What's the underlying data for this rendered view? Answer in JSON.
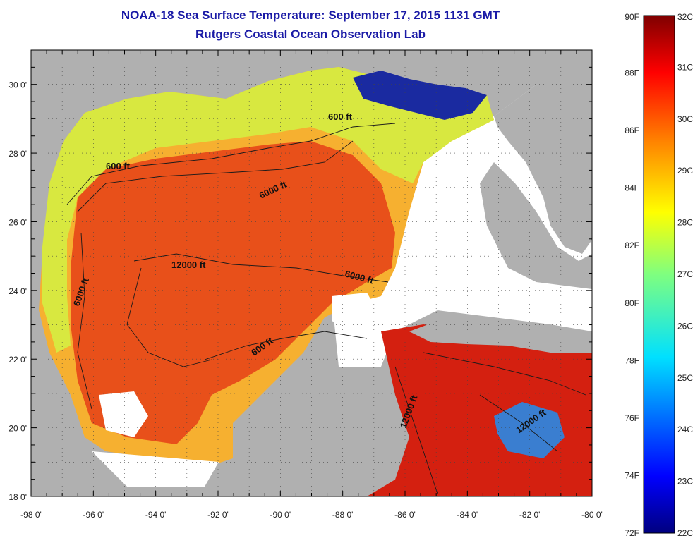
{
  "title": "NOAA-18 Sea Surface Temperature:  September 17, 2015 1131 GMT",
  "subtitle": "Rutgers Coastal Ocean Observation Lab",
  "map": {
    "lon_range": [
      -98,
      -80
    ],
    "lat_range": [
      18,
      31
    ],
    "x_ticks": [
      "-98 0'",
      "-96 0'",
      "-94 0'",
      "-92 0'",
      "-90 0'",
      "-88 0'",
      "-86 0'",
      "-84 0'",
      "-82 0'",
      "-80 0'"
    ],
    "y_ticks": [
      "30 0'",
      "28 0'",
      "26 0'",
      "24 0'",
      "22 0'",
      "20 0'",
      "18 0'"
    ],
    "contour_labels": [
      "600 ft",
      "600 ft",
      "6000 ft",
      "6000 ft",
      "12000 ft",
      "6000 ft",
      "600 ft",
      "12000 ft",
      "12000 ft"
    ],
    "colors": {
      "land": "#b0b0b0",
      "no_data": "#ffffff",
      "warm": "#e8501a",
      "hot": "#d42010",
      "mid": "#f6b030",
      "cool": "#d8e840",
      "cold": "#1a2aa0"
    }
  },
  "colorbar": {
    "fahrenheit_labels": [
      "90F",
      "88F",
      "86F",
      "84F",
      "82F",
      "80F",
      "78F",
      "76F",
      "74F",
      "72F"
    ],
    "celsius_labels": [
      "32C",
      "31C",
      "30C",
      "29C",
      "28C",
      "27C",
      "26C",
      "25C",
      "24C",
      "23C",
      "22C"
    ],
    "range_c": [
      22,
      32
    ],
    "range_f": [
      72,
      90
    ],
    "colormap": "jet"
  }
}
